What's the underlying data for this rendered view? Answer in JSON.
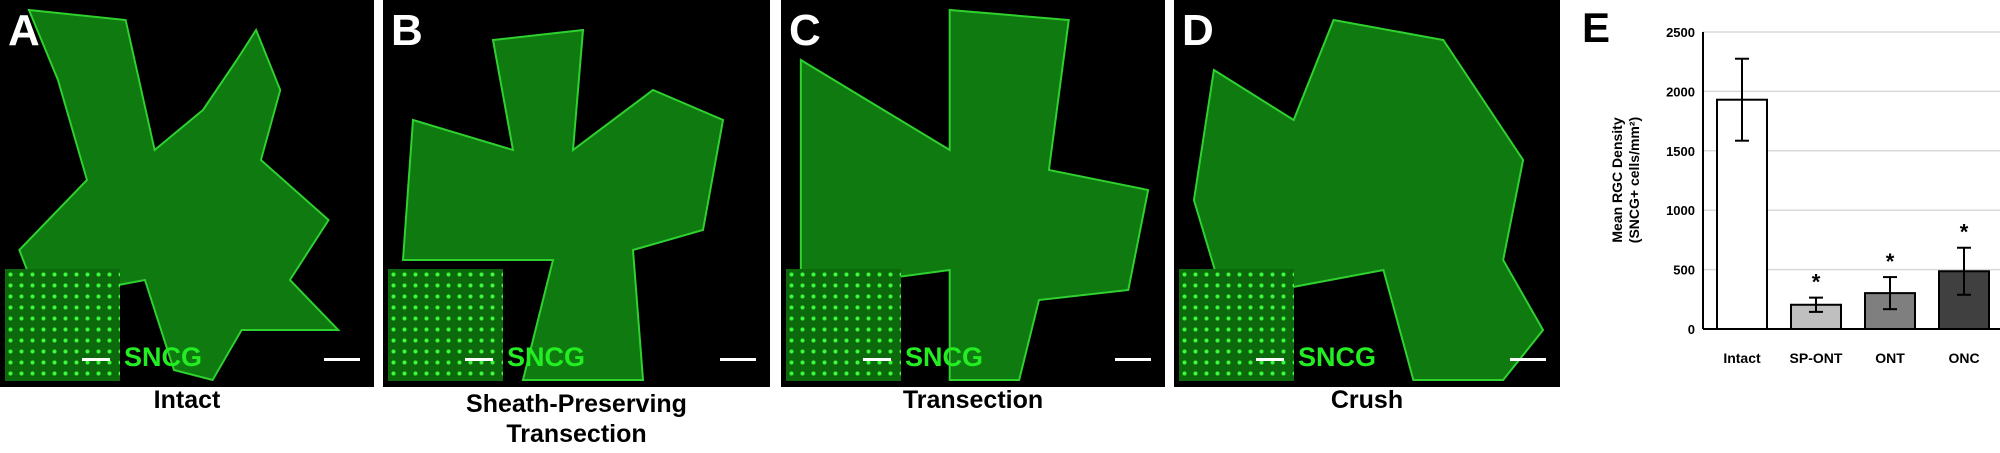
{
  "panels": [
    {
      "letter": "A",
      "caption": [
        "Intact"
      ],
      "stain": "SNCG"
    },
    {
      "letter": "B",
      "caption": [
        "Sheath-Preserving",
        "Transection"
      ],
      "stain": "SNCG"
    },
    {
      "letter": "C",
      "caption": [
        "Transection"
      ],
      "stain": "SNCG"
    },
    {
      "letter": "D",
      "caption": [
        "Crush"
      ],
      "stain": "SNCG"
    }
  ],
  "colors": {
    "stain": "#22ee22",
    "tissue": "#0e7a10"
  },
  "chart_data": {
    "panel_letter": "E",
    "type": "bar",
    "categories": [
      "Intact",
      "SP-ONT",
      "ONT",
      "ONC"
    ],
    "values": [
      1930,
      204,
      302,
      486
    ],
    "error": [
      345,
      60,
      135,
      198
    ],
    "significance": [
      "",
      "*",
      "*",
      "*"
    ],
    "bar_colors": [
      "#ffffff",
      "#bfbfbf",
      "#7f7f7f",
      "#404040"
    ],
    "ylabel": [
      "Mean RGC Density",
      "(SNCG+ cells/mm²)"
    ],
    "ylim": [
      0,
      2500
    ],
    "yticks": [
      0,
      500,
      1000,
      1500,
      2000,
      2500
    ],
    "grid": true
  }
}
